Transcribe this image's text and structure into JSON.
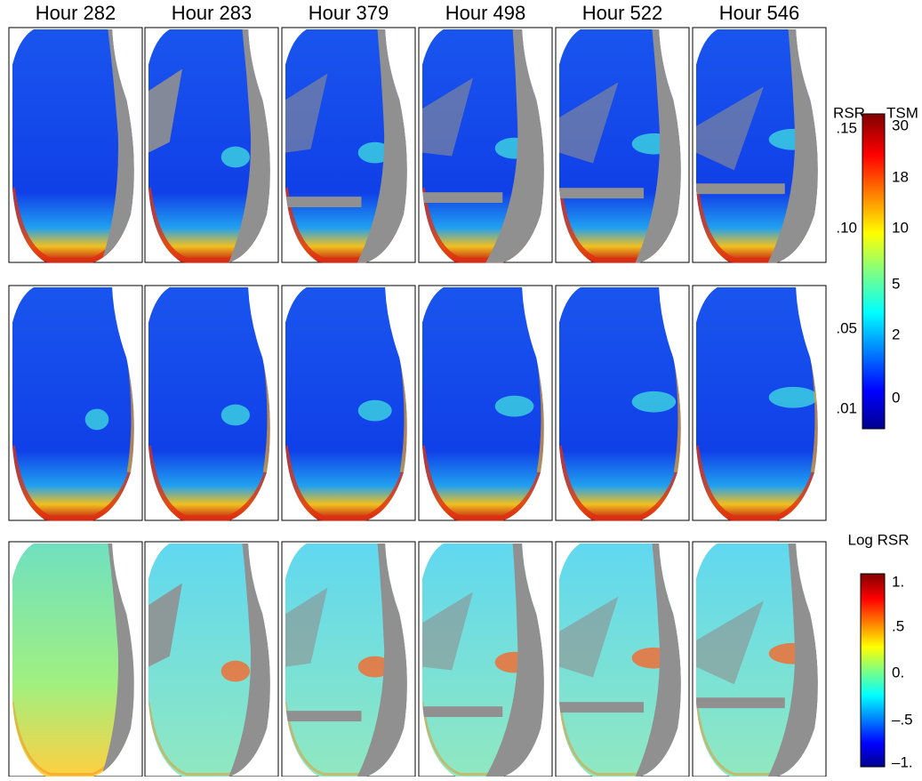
{
  "columns": [
    "Hour 282",
    "Hour 283",
    "Hour 379",
    "Hour 498",
    "Hour 522",
    "Hour 546"
  ],
  "colorbar_top": {
    "left_header": "RSR",
    "right_header": "TSM",
    "left_labels": [
      ".15",
      ".10",
      ".05",
      ".01"
    ],
    "right_labels": [
      "30",
      "18",
      "10",
      "5",
      "2",
      "0"
    ]
  },
  "colorbar_bottom": {
    "title": "Log RSR",
    "labels": [
      "1.",
      ".5",
      "0.",
      "–.5",
      "–​1."
    ]
  }
}
